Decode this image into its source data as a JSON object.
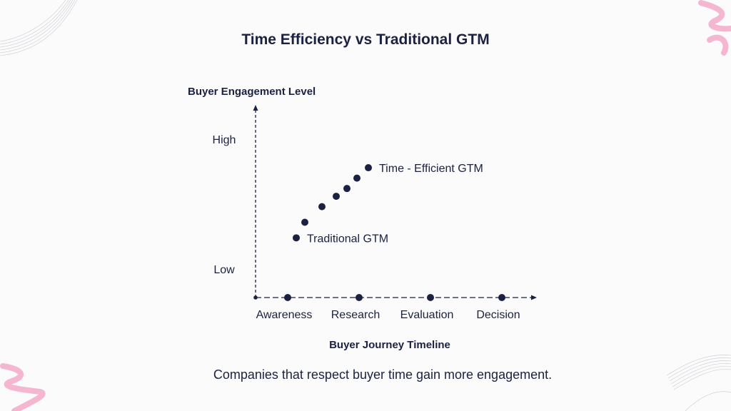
{
  "title": "Time Efficiency vs Traditional GTM",
  "caption": "Companies that respect buyer time gain more engagement.",
  "colors": {
    "ink": "#1b2141",
    "accent_pink": "#f4b7cf",
    "background": "#fbfbfc"
  },
  "chart_data": {
    "type": "scatter",
    "title": "Time Efficiency vs Traditional GTM",
    "xlabel": "Buyer Journey Timeline",
    "ylabel": "Buyer Engagement Level",
    "x_stages": [
      "Awareness",
      "Research",
      "Evaluation",
      "Decision"
    ],
    "y_levels": [
      "Low",
      "High"
    ],
    "grid": false,
    "points": [
      {
        "x": 0.15,
        "y": 0.24
      },
      {
        "x": 0.27,
        "y": 0.36
      },
      {
        "x": 0.51,
        "y": 0.48
      },
      {
        "x": 0.71,
        "y": 0.56
      },
      {
        "x": 0.86,
        "y": 0.62
      },
      {
        "x": 1.0,
        "y": 0.7
      },
      {
        "x": 1.16,
        "y": 0.78
      }
    ],
    "annotations": [
      {
        "text": "Traditional GTM",
        "point_index": 0
      },
      {
        "text": "Time - Efficient GTM",
        "point_index": 6
      }
    ]
  }
}
